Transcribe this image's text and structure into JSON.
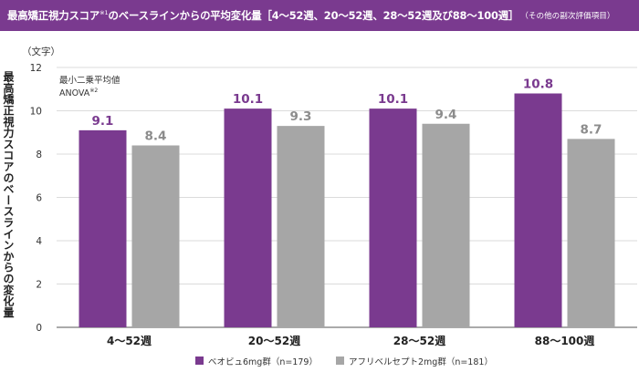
{
  "header": {
    "title_main": "最高矯正視力スコア",
    "title_note": "※1",
    "title_rest": "のベースラインからの平均変化量［4～52週、20～52週、28～52週及び88～100週］",
    "title_sub": "（その他の副次評価項目）"
  },
  "chart_data": {
    "type": "bar",
    "unit_label": "（文字）",
    "ylabel": "最高矯正視力スコアのベースラインからの変化量",
    "annotation_line1": "最小二乗平均値",
    "annotation_line2": "ANOVA",
    "annotation_note": "※2",
    "categories": [
      "4～52週",
      "20～52週",
      "28～52週",
      "88～100週"
    ],
    "ylim": [
      0,
      12
    ],
    "yticks": [
      0,
      2,
      4,
      6,
      8,
      10,
      12
    ],
    "series": [
      {
        "name": "ベオビュ6mg群（n=179）",
        "color": "#7a3a8f",
        "label_color": "#7a3a8f",
        "values": [
          9.1,
          10.1,
          10.1,
          10.8
        ],
        "value_labels": [
          "9.1",
          "10.1",
          "10.1",
          "10.8"
        ]
      },
      {
        "name": "アフリベルセプト2mg群（n=181）",
        "color": "#a6a6a6",
        "label_color": "#8c8c8c",
        "values": [
          8.4,
          9.3,
          9.4,
          8.7
        ],
        "value_labels": [
          "8.4",
          "9.3",
          "9.4",
          "8.7"
        ]
      }
    ],
    "legend_position": "bottom-center"
  }
}
